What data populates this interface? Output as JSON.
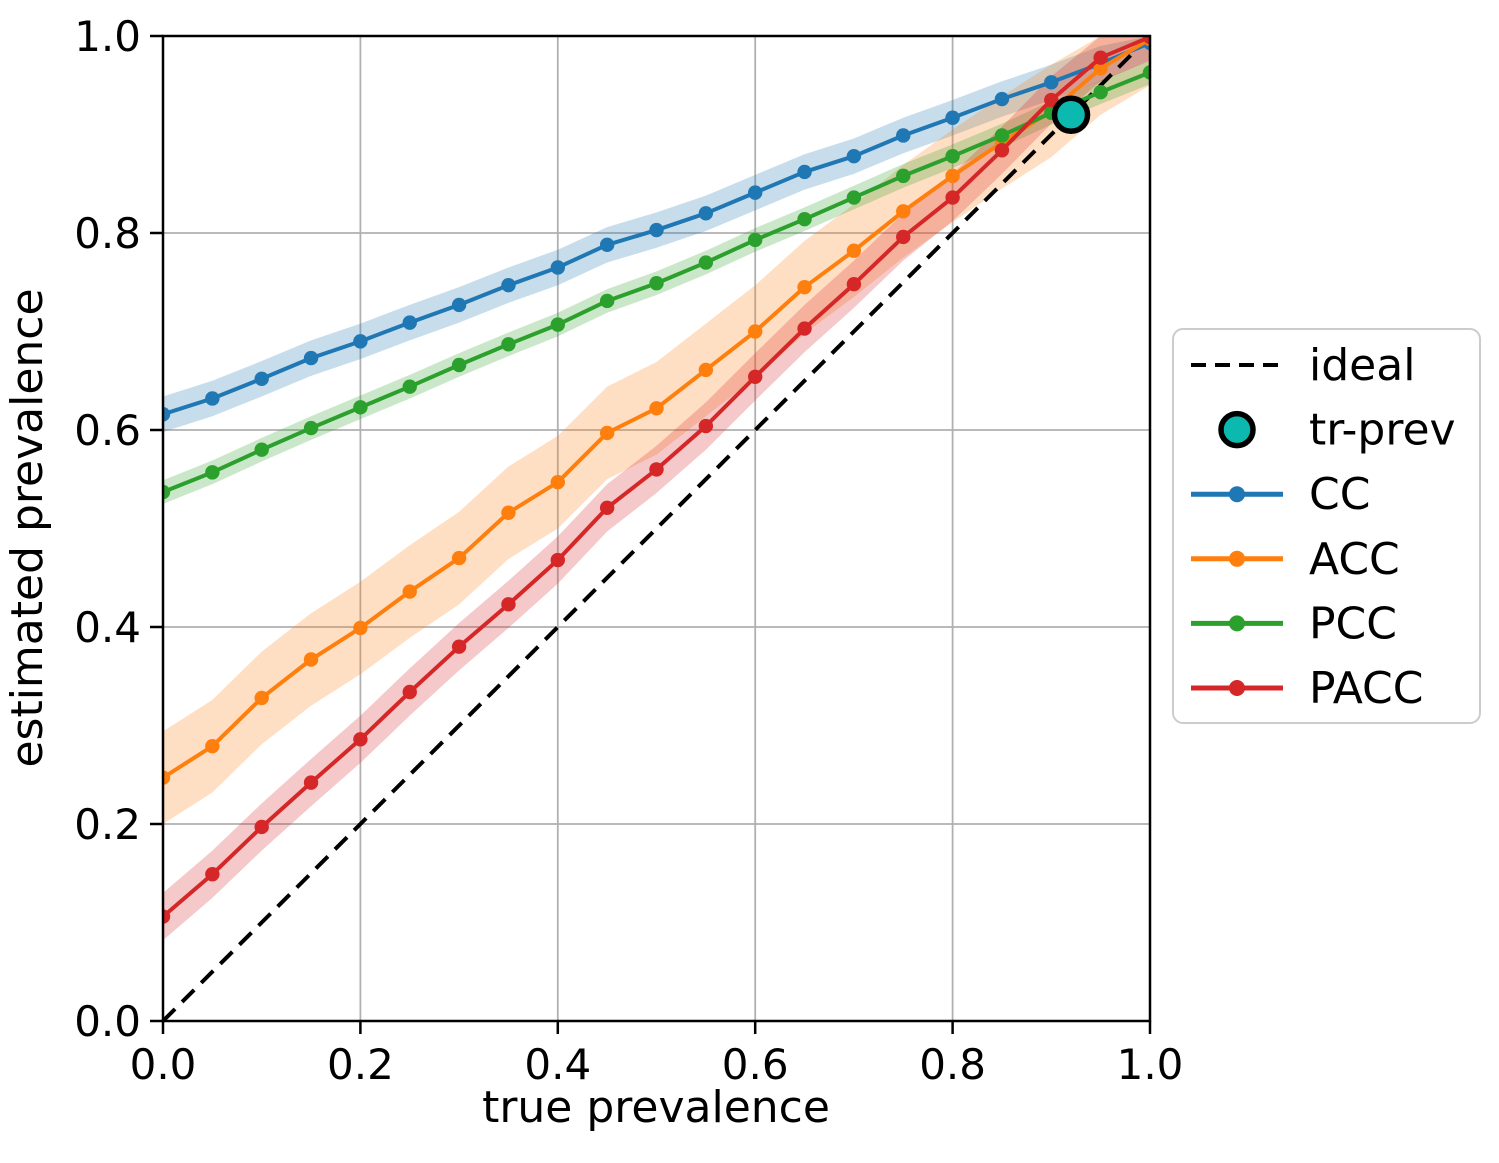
{
  "chart_data": {
    "type": "line",
    "xlabel": "true prevalence",
    "ylabel": "estimated prevalence",
    "xlim": [
      0.0,
      1.0
    ],
    "ylim": [
      0.0,
      1.0
    ],
    "xticks": [
      0.0,
      0.2,
      0.4,
      0.6,
      0.8,
      1.0
    ],
    "yticks": [
      0.0,
      0.2,
      0.4,
      0.6,
      0.8,
      1.0
    ],
    "grid": true,
    "grid_color": "#b0b0b0",
    "x": [
      0.0,
      0.05,
      0.1,
      0.15,
      0.2,
      0.25,
      0.3,
      0.35,
      0.4,
      0.45,
      0.5,
      0.55,
      0.6,
      0.65,
      0.7,
      0.75,
      0.8,
      0.85,
      0.9,
      0.95,
      1.0
    ],
    "series": [
      {
        "name": "CC",
        "color": "#1f77b4",
        "band_halfwidth": 0.018,
        "values": [
          0.616,
          0.632,
          0.652,
          0.673,
          0.69,
          0.709,
          0.727,
          0.747,
          0.765,
          0.788,
          0.803,
          0.82,
          0.841,
          0.862,
          0.878,
          0.899,
          0.917,
          0.936,
          0.953,
          0.972,
          0.993
        ]
      },
      {
        "name": "ACC",
        "color": "#ff7f0e",
        "band_halfwidth": 0.047,
        "values": [
          0.247,
          0.279,
          0.328,
          0.367,
          0.399,
          0.436,
          0.47,
          0.516,
          0.547,
          0.597,
          0.622,
          0.661,
          0.7,
          0.745,
          0.782,
          0.822,
          0.858,
          0.892,
          0.924,
          0.967,
          0.997
        ]
      },
      {
        "name": "PCC",
        "color": "#2ca02c",
        "band_halfwidth": 0.012,
        "values": [
          0.537,
          0.557,
          0.58,
          0.602,
          0.623,
          0.644,
          0.666,
          0.687,
          0.707,
          0.731,
          0.749,
          0.77,
          0.793,
          0.814,
          0.836,
          0.858,
          0.878,
          0.899,
          0.922,
          0.943,
          0.963
        ]
      },
      {
        "name": "PACC",
        "color": "#d62728",
        "band_halfwidth": 0.024,
        "values": [
          0.106,
          0.149,
          0.197,
          0.242,
          0.286,
          0.334,
          0.38,
          0.423,
          0.468,
          0.521,
          0.56,
          0.604,
          0.654,
          0.703,
          0.748,
          0.796,
          0.836,
          0.884,
          0.935,
          0.978,
          0.999
        ]
      }
    ],
    "ideal": {
      "label": "ideal",
      "style": "dashed",
      "color": "#000000",
      "from": [
        0.0,
        0.0
      ],
      "to": [
        1.0,
        1.0
      ]
    },
    "tr_prev": {
      "label": "tr-prev",
      "x": 0.92,
      "y": 0.92,
      "fill_color": "#0cb9ae",
      "edge_color": "#000000"
    },
    "legend": {
      "position": "right",
      "entries": [
        "ideal",
        "tr-prev",
        "CC",
        "ACC",
        "PCC",
        "PACC"
      ]
    }
  }
}
